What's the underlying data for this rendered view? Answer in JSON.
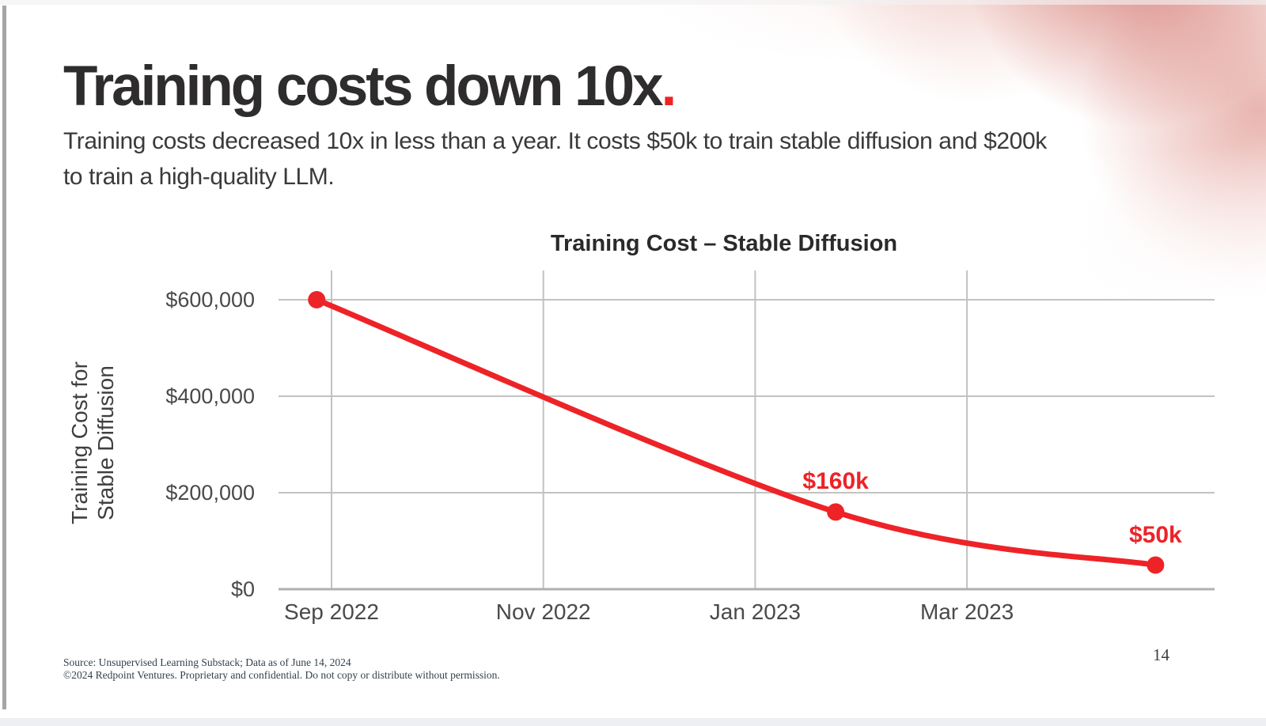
{
  "page": {
    "title_main": "Training costs down 10x",
    "title_period": ".",
    "subtitle_lines": [
      "Training costs decreased 10x in less than a year. It costs $50k to train stable diffusion and $200k",
      "to train a high-quality LLM."
    ],
    "footer_lines": [
      "Source: Unsupervised Learning Substack; Data as of June 14, 2024",
      "©2024 Redpoint Ventures. Proprietary and confidential. Do not copy or distribute without permission."
    ],
    "page_number": "14"
  },
  "colors": {
    "accent_red": "#ed2327",
    "title_text": "#2e2c2d",
    "body_text": "#3b393a",
    "chart_title_text": "#2b292b",
    "tick_text": "#4b494b",
    "axis_title_text": "#403e3f",
    "gridline": "#c2c2c2",
    "axis_line": "#b0b0b0",
    "footer_text": "#33424a",
    "page_number_text": "#3f3f3f"
  },
  "chart_data": {
    "type": "line",
    "title": "Training Cost – Stable Diffusion",
    "ylabel_lines": [
      "Training Cost for",
      "Stable Diffusion"
    ],
    "xlabel": "",
    "grid": true,
    "legend": "none",
    "ylim": [
      0,
      664000
    ],
    "xlim_months": [
      -0.5,
      8.33
    ],
    "x_ticks": [
      {
        "label": "Sep 2022",
        "month": 0
      },
      {
        "label": "Nov 2022",
        "month": 2
      },
      {
        "label": "Jan 2023",
        "month": 4
      },
      {
        "label": "Mar 2023",
        "month": 6
      }
    ],
    "y_ticks": [
      {
        "label": "$0",
        "value": 0
      },
      {
        "label": "$200,000",
        "value": 200000
      },
      {
        "label": "$400,000",
        "value": 400000
      },
      {
        "label": "$600,000",
        "value": 600000
      }
    ],
    "series": [
      {
        "name": "Training Cost – Stable Diffusion",
        "color": "#ed2327",
        "points": [
          {
            "month": -0.14,
            "value": 600000,
            "label": ""
          },
          {
            "month": 4.76,
            "value": 160000,
            "label": "$160k"
          },
          {
            "month": 7.78,
            "value": 50000,
            "label": "$50k"
          }
        ]
      }
    ]
  }
}
